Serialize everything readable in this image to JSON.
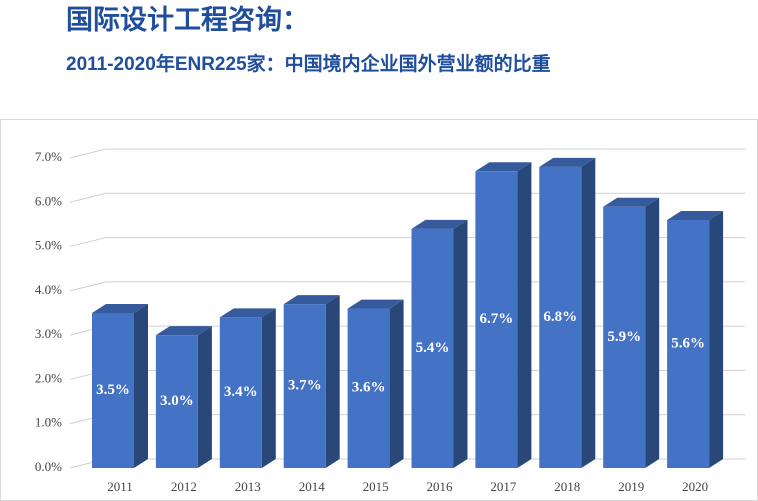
{
  "chart_data": {
    "type": "bar3d",
    "title": "国际设计工程咨询：",
    "subtitle": "2011-2020年ENR225家：中国境内企业国外营业额的比重",
    "categories": [
      "2011",
      "2012",
      "2013",
      "2014",
      "2015",
      "2016",
      "2017",
      "2018",
      "2019",
      "2020"
    ],
    "values": [
      3.5,
      3.0,
      3.4,
      3.7,
      3.6,
      5.4,
      6.7,
      6.8,
      5.9,
      5.6
    ],
    "value_labels": [
      "3.5%",
      "3.0%",
      "3.4%",
      "3.7%",
      "3.6%",
      "5.4%",
      "6.7%",
      "6.8%",
      "5.9%",
      "5.6%"
    ],
    "color": "#4472c4",
    "ylim": [
      0,
      7
    ],
    "yticks": [
      {
        "value": 0,
        "label": "0.0%"
      },
      {
        "value": 1,
        "label": "1.0%"
      },
      {
        "value": 2,
        "label": "2.0%"
      },
      {
        "value": 3,
        "label": "3.0%"
      },
      {
        "value": 4,
        "label": "4.0%"
      },
      {
        "value": 5,
        "label": "5.0%"
      },
      {
        "value": 6,
        "label": "6.0%"
      },
      {
        "value": 7,
        "label": "7.0%"
      }
    ],
    "grid": true
  }
}
